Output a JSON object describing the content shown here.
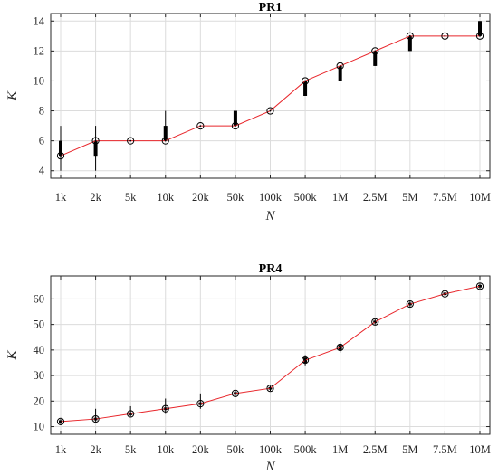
{
  "chart_data": [
    {
      "type": "line",
      "title": "PR1",
      "xlabel": "N",
      "ylabel": "K",
      "categories": [
        "1k",
        "2k",
        "5k",
        "10k",
        "20k",
        "50k",
        "100k",
        "500k",
        "1M",
        "2.5M",
        "5M",
        "7.5M",
        "10M"
      ],
      "ylim": [
        3.5,
        14.5
      ],
      "yticks": [
        4,
        6,
        8,
        10,
        12,
        14
      ],
      "grid": true,
      "series": [
        {
          "color": "#e8262b",
          "values": [
            5,
            6,
            6,
            6,
            7,
            7,
            8,
            10,
            11,
            12,
            13,
            13,
            13
          ]
        }
      ],
      "boxes": [
        {
          "q1": 5,
          "q3": 6,
          "min": 4,
          "max": 7
        },
        {
          "q1": 5,
          "q3": 6,
          "min": 4,
          "max": 7
        },
        {
          "q1": 6,
          "q3": 6,
          "min": 6,
          "max": 6
        },
        {
          "q1": 6,
          "q3": 7,
          "min": 6,
          "max": 8
        },
        {
          "q1": 7,
          "q3": 7,
          "min": 7,
          "max": 7
        },
        {
          "q1": 7,
          "q3": 8,
          "min": 7,
          "max": 8
        },
        {
          "q1": 8,
          "q3": 8,
          "min": 8,
          "max": 8
        },
        {
          "q1": 9,
          "q3": 10,
          "min": 9,
          "max": 10
        },
        {
          "q1": 10,
          "q3": 11,
          "min": 10,
          "max": 11
        },
        {
          "q1": 11,
          "q3": 12,
          "min": 11,
          "max": 12
        },
        {
          "q1": 12,
          "q3": 13,
          "min": 12,
          "max": 13
        },
        {
          "q1": 13,
          "q3": 13,
          "min": 13,
          "max": 13
        },
        {
          "q1": 13,
          "q3": 14,
          "min": 13,
          "max": 14
        }
      ]
    },
    {
      "type": "line",
      "title": "PR4",
      "xlabel": "N",
      "ylabel": "K",
      "categories": [
        "1k",
        "2k",
        "5k",
        "10k",
        "20k",
        "50k",
        "100k",
        "500k",
        "1M",
        "2.5M",
        "5M",
        "7.5M",
        "10M"
      ],
      "ylim": [
        7,
        69
      ],
      "yticks": [
        10,
        20,
        30,
        40,
        50,
        60
      ],
      "grid": true,
      "series": [
        {
          "color": "#e8262b",
          "values": [
            12,
            13,
            15,
            17,
            19,
            23,
            25,
            36,
            41,
            51,
            58,
            62,
            65
          ]
        }
      ],
      "boxes": [
        {
          "q1": 11.5,
          "q3": 12.5,
          "min": 11,
          "max": 13
        },
        {
          "q1": 12.5,
          "q3": 13.5,
          "min": 12,
          "max": 17
        },
        {
          "q1": 14.5,
          "q3": 15.5,
          "min": 14,
          "max": 18
        },
        {
          "q1": 16.5,
          "q3": 17.5,
          "min": 15,
          "max": 21
        },
        {
          "q1": 18.5,
          "q3": 19.5,
          "min": 17,
          "max": 23
        },
        {
          "q1": 22.5,
          "q3": 23.5,
          "min": 22,
          "max": 24
        },
        {
          "q1": 24.5,
          "q3": 25.5,
          "min": 24,
          "max": 26
        },
        {
          "q1": 35,
          "q3": 37,
          "min": 34,
          "max": 38
        },
        {
          "q1": 40,
          "q3": 42,
          "min": 39,
          "max": 43
        },
        {
          "q1": 50.5,
          "q3": 51.5,
          "min": 50,
          "max": 52
        },
        {
          "q1": 57.5,
          "q3": 58.5,
          "min": 57,
          "max": 59
        },
        {
          "q1": 61.5,
          "q3": 62.5,
          "min": 61,
          "max": 63
        },
        {
          "q1": 64.5,
          "q3": 65.5,
          "min": 64,
          "max": 66
        }
      ]
    }
  ]
}
